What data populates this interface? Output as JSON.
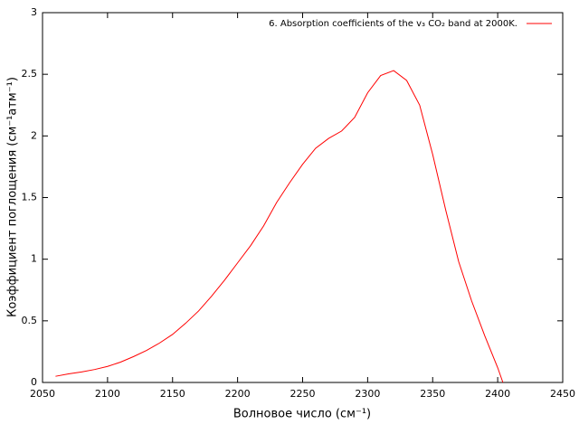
{
  "chart_data": {
    "type": "line",
    "xlabel": "Волновое число (см⁻¹)",
    "ylabel": "Коэффициент поглощения (см⁻¹атм⁻¹)",
    "x": [
      2060,
      2070,
      2080,
      2090,
      2100,
      2110,
      2120,
      2130,
      2140,
      2150,
      2160,
      2170,
      2180,
      2190,
      2200,
      2210,
      2220,
      2230,
      2240,
      2250,
      2260,
      2270,
      2280,
      2290,
      2300,
      2310,
      2320,
      2330,
      2340,
      2350,
      2360,
      2370,
      2380,
      2390,
      2400,
      2404
    ],
    "series": [
      {
        "name": "6. Absorption coefficients of the v₃ CO₂ band at 2000K.",
        "color": "#ff0000",
        "values": [
          0.05,
          0.07,
          0.085,
          0.105,
          0.13,
          0.165,
          0.21,
          0.26,
          0.32,
          0.39,
          0.48,
          0.58,
          0.7,
          0.83,
          0.97,
          1.11,
          1.27,
          1.46,
          1.62,
          1.77,
          1.9,
          1.98,
          2.04,
          2.15,
          2.35,
          2.49,
          2.53,
          2.45,
          2.25,
          1.85,
          1.4,
          0.98,
          0.66,
          0.38,
          0.12,
          0
        ]
      }
    ],
    "xlim": [
      2050,
      2450
    ],
    "xticks": [
      2050,
      2100,
      2150,
      2200,
      2250,
      2300,
      2350,
      2400,
      2450
    ],
    "ylim": [
      0,
      3
    ],
    "yticks": [
      0,
      0.5,
      1,
      1.5,
      2,
      2.5,
      3
    ],
    "legend": "upper right"
  }
}
